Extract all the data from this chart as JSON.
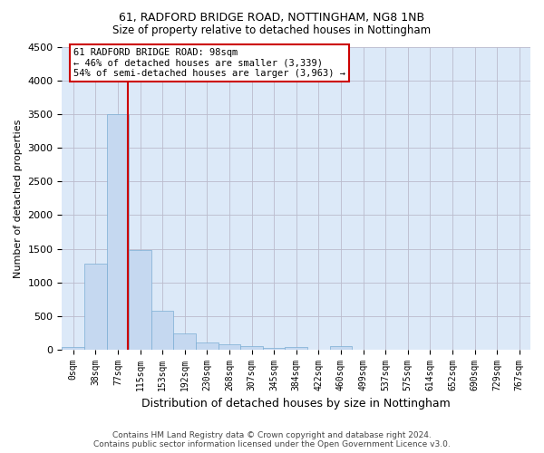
{
  "title1": "61, RADFORD BRIDGE ROAD, NOTTINGHAM, NG8 1NB",
  "title2": "Size of property relative to detached houses in Nottingham",
  "xlabel": "Distribution of detached houses by size in Nottingham",
  "ylabel": "Number of detached properties",
  "bar_color": "#c5d8f0",
  "bar_edge_color": "#7aadd4",
  "bin_labels": [
    "0sqm",
    "38sqm",
    "77sqm",
    "115sqm",
    "153sqm",
    "192sqm",
    "230sqm",
    "268sqm",
    "307sqm",
    "345sqm",
    "384sqm",
    "422sqm",
    "460sqm",
    "499sqm",
    "537sqm",
    "575sqm",
    "614sqm",
    "652sqm",
    "690sqm",
    "729sqm",
    "767sqm"
  ],
  "bar_values": [
    40,
    1280,
    3500,
    1480,
    580,
    240,
    115,
    80,
    50,
    30,
    45,
    0,
    50,
    0,
    0,
    0,
    0,
    0,
    0,
    0,
    0
  ],
  "ylim": [
    0,
    4500
  ],
  "yticks": [
    0,
    500,
    1000,
    1500,
    2000,
    2500,
    3000,
    3500,
    4000,
    4500
  ],
  "annotation_text1": "61 RADFORD BRIDGE ROAD: 98sqm",
  "annotation_text2": "← 46% of detached houses are smaller (3,339)",
  "annotation_text3": "54% of semi-detached houses are larger (3,963) →",
  "vline_color": "#cc0000",
  "annotation_box_color": "#ffffff",
  "annotation_box_edge_color": "#cc0000",
  "grid_color": "#cccccc",
  "background_color": "#dce9f8",
  "footer_text": "Contains HM Land Registry data © Crown copyright and database right 2024.\nContains public sector information licensed under the Open Government Licence v3.0."
}
